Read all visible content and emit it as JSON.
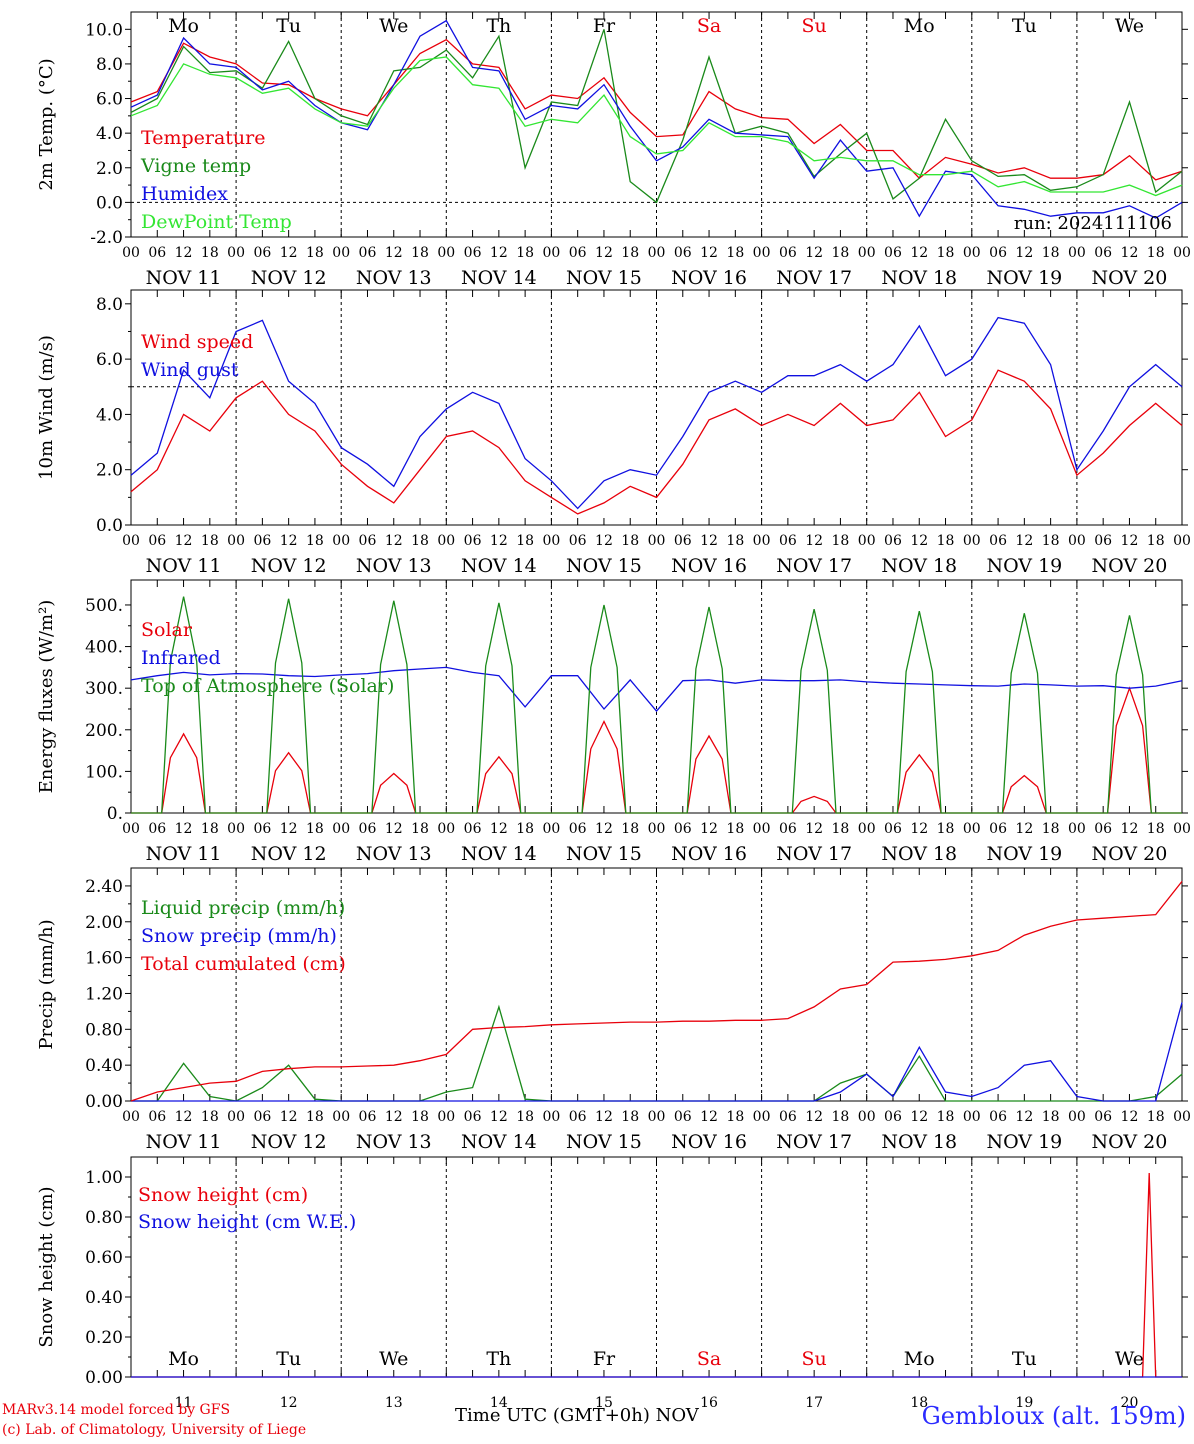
{
  "colors": {
    "red": "#e8000b",
    "green": "#1a8a1a",
    "blue": "#1010e0",
    "lightgreen": "#33e633",
    "black": "#000000"
  },
  "time": {
    "start": "2024-11-11T00:00Z",
    "end": "2024-11-21T00:00Z",
    "hour_ticks": [
      "00",
      "06",
      "12",
      "18"
    ],
    "final_tick": "00",
    "date_labels": [
      "NOV 11",
      "NOV 12",
      "NOV 13",
      "NOV 14",
      "NOV 15",
      "NOV 16",
      "NOV 17",
      "NOV 18",
      "NOV 19",
      "NOV 20"
    ],
    "weekdays": [
      "Mo",
      "Tu",
      "We",
      "Th",
      "Fr",
      "Sa",
      "Su",
      "Mo",
      "Tu",
      "We"
    ],
    "weekday_colors": [
      "#000000",
      "#000000",
      "#000000",
      "#000000",
      "#000000",
      "#e8000b",
      "#e8000b",
      "#000000",
      "#000000",
      "#000000"
    ],
    "day_numbers": [
      "11",
      "12",
      "13",
      "14",
      "15",
      "16",
      "17",
      "18",
      "19",
      "20"
    ],
    "month": "NOV"
  },
  "footer": {
    "credit_line1": "MARv3.14 model forced by GFS",
    "credit_line2": "(c) Lab. of Climatology, University of Liege",
    "xlabel": "Time UTC (GMT+0h)",
    "station": "Gembloux (alt. 159m)"
  },
  "chart_data": [
    {
      "id": "temperature",
      "type": "line",
      "ylabel": "2m Temp. (°C)",
      "ylim": [
        -2,
        11
      ],
      "yticks": [
        -2,
        0,
        2,
        4,
        6,
        8,
        10
      ],
      "ytick_labels": [
        "-2.0",
        "0.0",
        "2.0",
        "4.0",
        "6.0",
        "8.0",
        "10.0"
      ],
      "ref_line": 0,
      "annotation": "run: 2024111106",
      "show_weekdays": true,
      "series": [
        {
          "name": "Temperature",
          "color": "#e8000b",
          "x_step_h": 6,
          "values": [
            5.8,
            6.4,
            9.2,
            8.4,
            8.0,
            6.9,
            6.8,
            6.0,
            5.4,
            5.0,
            6.8,
            8.6,
            9.4,
            8.0,
            7.8,
            5.4,
            6.2,
            6.0,
            7.2,
            5.2,
            3.8,
            3.9,
            6.4,
            5.4,
            4.9,
            4.8,
            3.4,
            4.5,
            3.0,
            3.0,
            1.4,
            2.6,
            2.2,
            1.7,
            2.0,
            1.4,
            1.4,
            1.6,
            2.7,
            1.3,
            1.8
          ]
        },
        {
          "name": "Vigne temp",
          "color": "#1a8a1a",
          "x_step_h": 6,
          "values": [
            5.2,
            6.0,
            9.0,
            7.5,
            7.6,
            6.6,
            9.3,
            6.0,
            5.0,
            4.5,
            7.6,
            7.8,
            8.8,
            7.2,
            9.6,
            2.0,
            5.8,
            5.6,
            10.0,
            1.2,
            0.0,
            3.6,
            8.4,
            4.0,
            4.4,
            4.0,
            1.5,
            2.8,
            4.0,
            0.2,
            1.4,
            4.8,
            2.4,
            1.5,
            1.6,
            0.7,
            0.9,
            1.6,
            5.8,
            0.6,
            1.8
          ]
        },
        {
          "name": "Humidex",
          "color": "#1010e0",
          "x_step_h": 6,
          "values": [
            5.5,
            6.2,
            9.5,
            8.0,
            7.8,
            6.5,
            7.0,
            5.6,
            4.6,
            4.2,
            6.8,
            9.6,
            10.5,
            7.8,
            7.6,
            4.8,
            5.6,
            5.4,
            6.8,
            4.4,
            2.4,
            3.2,
            4.8,
            4.0,
            3.9,
            3.8,
            1.4,
            3.6,
            1.8,
            2.0,
            -0.8,
            1.8,
            1.6,
            -0.2,
            -0.4,
            -0.8,
            -0.6,
            -0.6,
            -0.2,
            -0.9,
            0.0
          ]
        },
        {
          "name": "DewPoint Temp",
          "color": "#33e633",
          "x_step_h": 6,
          "values": [
            5.0,
            5.6,
            8.0,
            7.4,
            7.2,
            6.3,
            6.6,
            5.4,
            4.6,
            4.4,
            6.6,
            8.2,
            8.4,
            6.8,
            6.6,
            4.4,
            4.8,
            4.6,
            6.2,
            3.8,
            2.8,
            3.0,
            4.6,
            3.8,
            3.8,
            3.5,
            2.4,
            2.6,
            2.4,
            2.4,
            1.6,
            1.6,
            1.8,
            0.9,
            1.2,
            0.6,
            0.6,
            0.6,
            1.0,
            0.4,
            1.0
          ]
        }
      ]
    },
    {
      "id": "wind",
      "type": "line",
      "ylabel": "10m Wind (m/s)",
      "ylim": [
        0,
        8.5
      ],
      "yticks": [
        0,
        2,
        4,
        6,
        8
      ],
      "ytick_labels": [
        "0.0",
        "2.0",
        "4.0",
        "6.0",
        "8.0"
      ],
      "ref_line": 5,
      "series": [
        {
          "name": "Wind speed",
          "color": "#e8000b",
          "x_step_h": 6,
          "values": [
            1.2,
            2.0,
            4.0,
            3.4,
            4.6,
            5.2,
            4.0,
            3.4,
            2.2,
            1.4,
            0.8,
            2.0,
            3.2,
            3.4,
            2.8,
            1.6,
            1.0,
            0.4,
            0.8,
            1.4,
            1.0,
            2.2,
            3.8,
            4.2,
            3.6,
            4.0,
            3.6,
            4.4,
            3.6,
            3.8,
            4.8,
            3.2,
            3.8,
            5.6,
            5.2,
            4.2,
            1.8,
            2.6,
            3.6,
            4.4,
            3.6
          ]
        },
        {
          "name": "Wind gust",
          "color": "#1010e0",
          "x_step_h": 6,
          "values": [
            1.8,
            2.6,
            5.6,
            4.6,
            7.0,
            7.4,
            5.2,
            4.4,
            2.8,
            2.2,
            1.4,
            3.2,
            4.2,
            4.8,
            4.4,
            2.4,
            1.6,
            0.6,
            1.6,
            2.0,
            1.8,
            3.2,
            4.8,
            5.2,
            4.8,
            5.4,
            5.4,
            5.8,
            5.2,
            5.8,
            7.2,
            5.4,
            6.0,
            7.5,
            7.3,
            5.8,
            2.0,
            3.4,
            5.0,
            5.8,
            5.0
          ]
        }
      ]
    },
    {
      "id": "energy",
      "type": "line",
      "ylabel": "Energy fluxes (W/m²)",
      "ylim": [
        0,
        560
      ],
      "yticks": [
        0,
        100,
        200,
        300,
        400,
        500
      ],
      "ytick_labels": [
        "0.",
        "100.",
        "200.",
        "300.",
        "400.",
        "500."
      ],
      "series": [
        {
          "name": "Solar",
          "color": "#e8000b",
          "daily_peak": [
            190,
            145,
            95,
            135,
            220,
            185,
            40,
            140,
            90,
            300
          ]
        },
        {
          "name": "Infrared",
          "color": "#1010e0",
          "x_step_h": 6,
          "values": [
            320,
            330,
            338,
            332,
            335,
            334,
            330,
            328,
            332,
            335,
            342,
            346,
            350,
            338,
            330,
            255,
            330,
            330,
            250,
            320,
            245,
            318,
            320,
            312,
            320,
            318,
            318,
            320,
            315,
            312,
            310,
            308,
            306,
            305,
            310,
            308,
            305,
            306,
            300,
            305,
            318
          ]
        },
        {
          "name": "Top of Atmosphere (Solar)",
          "color": "#1a8a1a",
          "daily_peak": [
            520,
            515,
            510,
            505,
            500,
            495,
            490,
            485,
            480,
            475
          ]
        }
      ]
    },
    {
      "id": "precip",
      "type": "line",
      "ylabel": "Precip (mm/h)",
      "ylim": [
        0,
        2.6
      ],
      "yticks": [
        0,
        0.4,
        0.8,
        1.2,
        1.6,
        2.0,
        2.4
      ],
      "ytick_labels": [
        "0.00",
        "0.40",
        "0.80",
        "1.20",
        "1.60",
        "2.00",
        "2.40"
      ],
      "series": [
        {
          "name": "Liquid precip (mm/h)",
          "color": "#1a8a1a",
          "x_step_h": 6,
          "values": [
            0,
            0,
            0.42,
            0.05,
            0,
            0.15,
            0.4,
            0.02,
            0,
            0,
            0,
            0,
            0.1,
            0.15,
            1.05,
            0.02,
            0,
            0,
            0,
            0,
            0,
            0,
            0,
            0,
            0,
            0,
            0,
            0.2,
            0.3,
            0.05,
            0.5,
            0,
            0,
            0,
            0,
            0,
            0,
            0,
            0,
            0.05,
            0.3
          ]
        },
        {
          "name": "Snow precip (mm/h)",
          "color": "#1010e0",
          "x_step_h": 6,
          "values": [
            0,
            0,
            0,
            0,
            0,
            0,
            0,
            0,
            0,
            0,
            0,
            0,
            0,
            0,
            0,
            0,
            0,
            0,
            0,
            0,
            0,
            0,
            0,
            0,
            0,
            0,
            0,
            0.1,
            0.3,
            0.05,
            0.6,
            0.1,
            0.05,
            0.15,
            0.4,
            0.45,
            0.05,
            0,
            0,
            0,
            1.1
          ]
        },
        {
          "name": "Total cumulated (cm)",
          "color": "#e8000b",
          "x_step_h": 6,
          "values": [
            0,
            0.1,
            0.15,
            0.2,
            0.22,
            0.33,
            0.36,
            0.38,
            0.38,
            0.39,
            0.4,
            0.45,
            0.52,
            0.8,
            0.82,
            0.83,
            0.85,
            0.86,
            0.87,
            0.88,
            0.88,
            0.89,
            0.89,
            0.9,
            0.9,
            0.92,
            1.05,
            1.25,
            1.3,
            1.55,
            1.56,
            1.58,
            1.62,
            1.68,
            1.85,
            1.95,
            2.02,
            2.04,
            2.06,
            2.08,
            2.45
          ]
        }
      ]
    },
    {
      "id": "snow",
      "type": "line",
      "ylabel": "Snow height (cm)",
      "ylim": [
        0,
        1.1
      ],
      "yticks": [
        0,
        0.2,
        0.4,
        0.6,
        0.8,
        1.0
      ],
      "ytick_labels": [
        "0.00",
        "0.20",
        "0.40",
        "0.60",
        "0.80",
        "1.00"
      ],
      "bottom_weekdays": true,
      "series": [
        {
          "name": "Snow height (cm)",
          "color": "#e8000b",
          "spike": {
            "start_h": 231,
            "peak_h": 232.5,
            "end_h": 234,
            "peak": 1.02
          }
        },
        {
          "name": "Snow height (cm W.E.)",
          "color": "#1010e0",
          "spike": null
        }
      ]
    }
  ]
}
